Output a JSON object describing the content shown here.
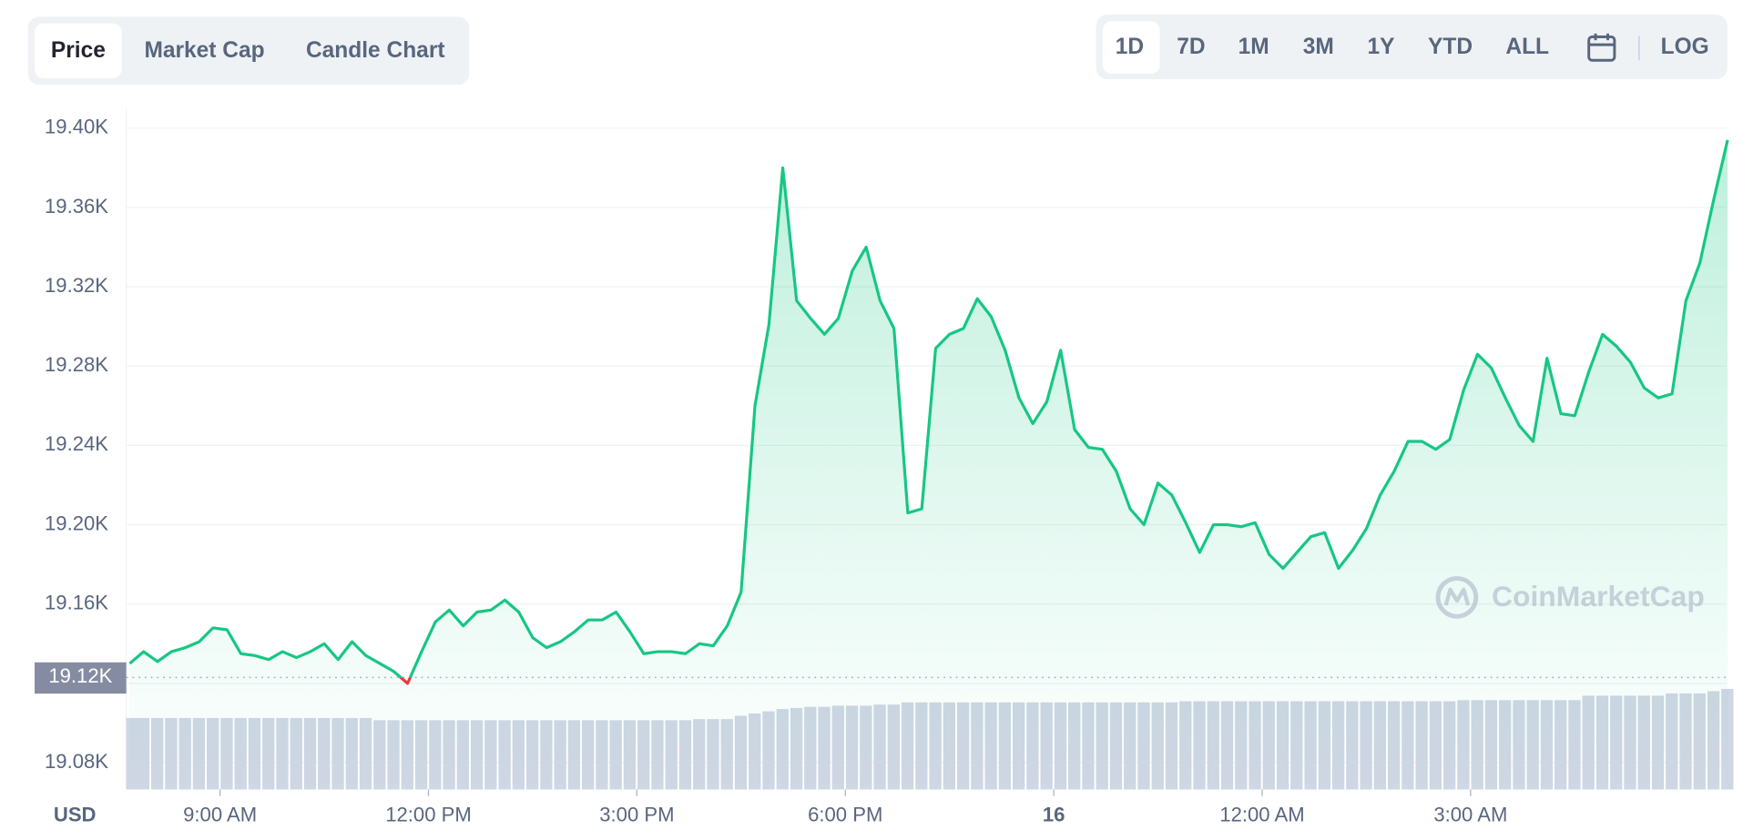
{
  "tabs": [
    "Price",
    "Market Cap",
    "Candle Chart"
  ],
  "active_tab": 0,
  "ranges": [
    "1D",
    "7D",
    "1M",
    "3M",
    "1Y",
    "YTD",
    "ALL"
  ],
  "active_range": 0,
  "scale_button": "LOG",
  "chart_data": {
    "type": "area",
    "currency": "USD",
    "watermark": "CoinMarketCap",
    "color": "#16c784",
    "down_color": "#ea3943",
    "volume_color": "#cfd6e4",
    "reference": {
      "value": 19123,
      "label": "19.12K"
    },
    "xlim": [
      7.65,
      30.68
    ],
    "ylim": [
      19066.5,
      19410
    ],
    "yticks": [
      {
        "value": 19080,
        "label": "19.08K"
      },
      {
        "value": 19120,
        "label": "19.12K"
      },
      {
        "value": 19160,
        "label": "19.16K"
      },
      {
        "value": 19200,
        "label": "19.20K"
      },
      {
        "value": 19240,
        "label": "19.24K"
      },
      {
        "value": 19280,
        "label": "19.28K"
      },
      {
        "value": 19320,
        "label": "19.32K"
      },
      {
        "value": 19360,
        "label": "19.36K"
      },
      {
        "value": 19400,
        "label": "19.40K"
      }
    ],
    "xticks": [
      {
        "value": 9,
        "label": "9:00 AM"
      },
      {
        "value": 12,
        "label": "12:00 PM"
      },
      {
        "value": 15,
        "label": "3:00 PM"
      },
      {
        "value": 18,
        "label": "6:00 PM"
      },
      {
        "value": 21,
        "label": "16"
      },
      {
        "value": 24,
        "label": "12:00 AM"
      },
      {
        "value": 27,
        "label": "3:00 AM"
      }
    ],
    "grid": true,
    "x": [
      7.7,
      7.9,
      8.1,
      8.3,
      8.5,
      8.7,
      8.9,
      9.1,
      9.3,
      9.5,
      9.7,
      9.9,
      10.1,
      10.3,
      10.5,
      10.7,
      10.9,
      11.1,
      11.3,
      11.5,
      11.7,
      11.9,
      12.1,
      12.3,
      12.5,
      12.7,
      12.9,
      13.1,
      13.3,
      13.5,
      13.7,
      13.9,
      14.1,
      14.3,
      14.5,
      14.7,
      14.9,
      15.1,
      15.3,
      15.5,
      15.7,
      15.9,
      16.1,
      16.3,
      16.5,
      16.7,
      16.9,
      17.1,
      17.3,
      17.5,
      17.7,
      17.9,
      18.1,
      18.3,
      18.5,
      18.7,
      18.9,
      19.1,
      19.3,
      19.5,
      19.7,
      19.9,
      20.1,
      20.3,
      20.5,
      20.7,
      20.9,
      21.1,
      21.3,
      21.5,
      21.7,
      21.9,
      22.1,
      22.3,
      22.5,
      22.7,
      22.9,
      23.1,
      23.3,
      23.5,
      23.7,
      23.9,
      24.1,
      24.3,
      24.5,
      24.7,
      24.9,
      25.1,
      25.3,
      25.5,
      25.7,
      25.9,
      26.1,
      26.3,
      26.5,
      26.7,
      26.9,
      27.1,
      27.3,
      27.5,
      27.7,
      27.9,
      28.1,
      28.3,
      28.5,
      28.7,
      28.9,
      29.1,
      29.3,
      29.5,
      29.7,
      29.9,
      30.1,
      30.3,
      30.5,
      30.7
    ],
    "values": [
      19130,
      19136,
      19131,
      19136,
      19138,
      19141,
      19148,
      19147,
      19135,
      19134,
      19132,
      19136,
      19133,
      19136,
      19140,
      19132,
      19141,
      19134,
      19130,
      19126,
      19120,
      19136,
      19151,
      19157,
      19149,
      19156,
      19157,
      19162,
      19156,
      19143,
      19138,
      19141,
      19146,
      19152,
      19152,
      19156,
      19146,
      19135,
      19136,
      19136,
      19135,
      19140,
      19139,
      19149,
      19166,
      19260,
      19301,
      19380,
      19313,
      19304,
      19296,
      19304,
      19328,
      19340,
      19313,
      19299,
      19206,
      19208,
      19289,
      19296,
      19299,
      19314,
      19305,
      19288,
      19264,
      19251,
      19262,
      19288,
      19248,
      19239,
      19238,
      19227,
      19208,
      19200,
      19221,
      19215,
      19201,
      19186,
      19200,
      19200,
      19199,
      19201,
      19185,
      19178,
      19186,
      19194,
      19196,
      19178,
      19187,
      19198,
      19215,
      19227,
      19242,
      19242,
      19238,
      19243,
      19268,
      19286,
      19279,
      19264,
      19250,
      19242,
      19284,
      19256,
      19255,
      19277,
      19296,
      19290,
      19282,
      19269,
      19264,
      19266,
      19313,
      19332,
      19364,
      19394
    ],
    "volume": [
      64,
      64,
      64,
      64,
      64,
      64,
      64,
      64,
      64,
      64,
      64,
      64,
      64,
      64,
      64,
      64,
      64,
      64,
      62,
      62,
      62,
      62,
      62,
      62,
      62,
      62,
      62,
      62,
      62,
      62,
      62,
      62,
      62,
      62,
      62,
      62,
      62,
      62,
      62,
      62,
      62,
      63,
      63,
      63,
      66,
      68,
      70,
      72,
      73,
      74,
      74,
      75,
      75,
      75,
      76,
      76,
      78,
      78,
      78,
      78,
      78,
      78,
      78,
      78,
      78,
      78,
      78,
      78,
      78,
      78,
      78,
      78,
      78,
      78,
      78,
      78,
      79,
      79,
      79,
      79,
      79,
      79,
      79,
      79,
      79,
      79,
      79,
      79,
      79,
      79,
      79,
      79,
      79,
      79,
      79,
      79,
      80,
      80,
      80,
      80,
      80,
      80,
      80,
      80,
      80,
      84,
      84,
      84,
      84,
      84,
      84,
      86,
      86,
      86,
      88,
      90
    ]
  }
}
